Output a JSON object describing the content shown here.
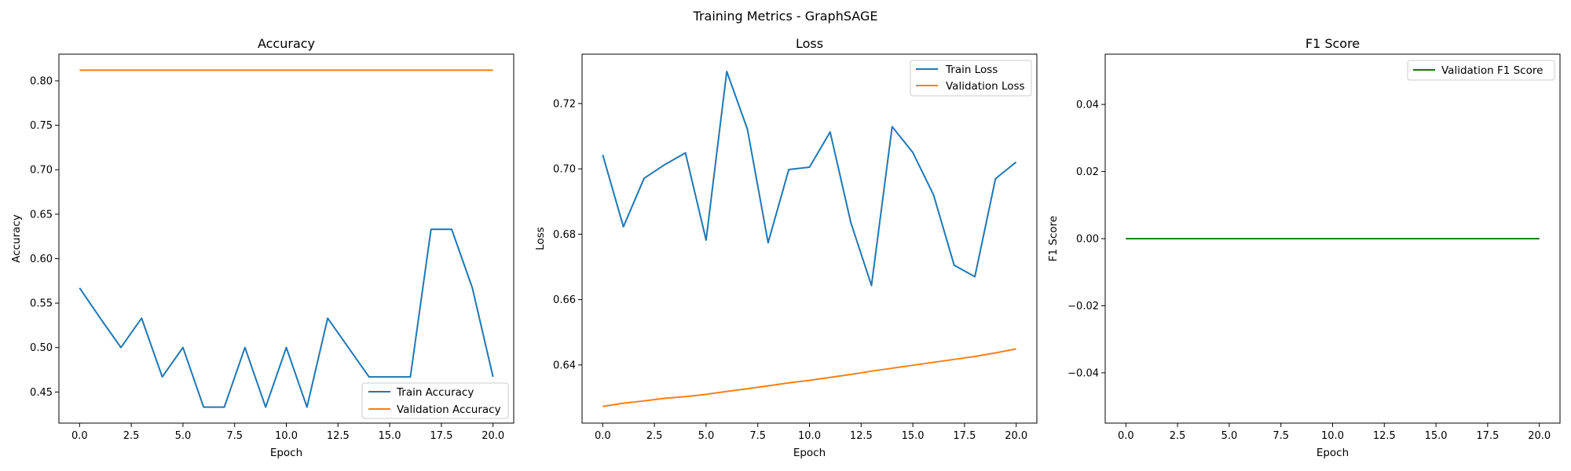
{
  "figure": {
    "suptitle": "Training Metrics - GraphSAGE"
  },
  "colors": {
    "train": "#1f77b4",
    "validation": "#ff7f0e",
    "f1": "#008000"
  },
  "chart_data": [
    {
      "type": "line",
      "title": "Accuracy",
      "xlabel": "Epoch",
      "ylabel": "Accuracy",
      "xlim": [
        -1,
        21
      ],
      "ylim": [
        0.415,
        0.83
      ],
      "x_ticks": [
        0.0,
        2.5,
        5.0,
        7.5,
        10.0,
        12.5,
        15.0,
        17.5,
        20.0
      ],
      "x_tick_labels": [
        "0.0",
        "2.5",
        "5.0",
        "7.5",
        "10.0",
        "12.5",
        "15.0",
        "17.5",
        "20.0"
      ],
      "y_ticks": [
        0.45,
        0.5,
        0.55,
        0.6,
        0.65,
        0.7,
        0.75,
        0.8
      ],
      "y_tick_labels": [
        "0.45",
        "0.50",
        "0.55",
        "0.60",
        "0.65",
        "0.70",
        "0.75",
        "0.80"
      ],
      "grid": false,
      "legend_position": "lower-right",
      "x": [
        0,
        1,
        2,
        3,
        4,
        5,
        6,
        7,
        8,
        9,
        10,
        11,
        12,
        13,
        14,
        15,
        16,
        17,
        18,
        19,
        20
      ],
      "series": [
        {
          "name": "Train Accuracy",
          "color": "#1f77b4",
          "values": [
            0.567,
            0.533,
            0.5,
            0.533,
            0.467,
            0.5,
            0.433,
            0.433,
            0.5,
            0.433,
            0.5,
            0.433,
            0.533,
            0.5,
            0.467,
            0.467,
            0.467,
            0.633,
            0.633,
            0.567,
            0.467
          ]
        },
        {
          "name": "Validation Accuracy",
          "color": "#ff7f0e",
          "values": [
            0.812,
            0.812,
            0.812,
            0.812,
            0.812,
            0.812,
            0.812,
            0.812,
            0.812,
            0.812,
            0.812,
            0.812,
            0.812,
            0.812,
            0.812,
            0.812,
            0.812,
            0.812,
            0.812,
            0.812,
            0.812
          ]
        }
      ]
    },
    {
      "type": "line",
      "title": "Loss",
      "xlabel": "Epoch",
      "ylabel": "Loss",
      "xlim": [
        -1,
        21
      ],
      "ylim": [
        0.6222,
        0.7351
      ],
      "x_ticks": [
        0.0,
        2.5,
        5.0,
        7.5,
        10.0,
        12.5,
        15.0,
        17.5,
        20.0
      ],
      "x_tick_labels": [
        "0.0",
        "2.5",
        "5.0",
        "7.5",
        "10.0",
        "12.5",
        "15.0",
        "17.5",
        "20.0"
      ],
      "y_ticks": [
        0.64,
        0.66,
        0.68,
        0.7,
        0.72
      ],
      "y_tick_labels": [
        "0.64",
        "0.66",
        "0.68",
        "0.70",
        "0.72"
      ],
      "grid": false,
      "legend_position": "upper-right",
      "x": [
        0,
        1,
        2,
        3,
        4,
        5,
        6,
        7,
        8,
        9,
        10,
        11,
        12,
        13,
        14,
        15,
        16,
        17,
        18,
        19,
        20
      ],
      "series": [
        {
          "name": "Train Loss",
          "color": "#1f77b4",
          "values": [
            0.7043,
            0.6823,
            0.6971,
            0.7013,
            0.7049,
            0.6782,
            0.7298,
            0.7121,
            0.6774,
            0.6998,
            0.7005,
            0.7113,
            0.6836,
            0.6643,
            0.7129,
            0.705,
            0.6921,
            0.6705,
            0.667,
            0.697,
            0.7021
          ]
        },
        {
          "name": "Validation Loss",
          "color": "#ff7f0e",
          "values": [
            0.6273,
            0.6283,
            0.629,
            0.6298,
            0.6303,
            0.631,
            0.6319,
            0.6327,
            0.6336,
            0.6345,
            0.6353,
            0.6362,
            0.6371,
            0.6381,
            0.639,
            0.6399,
            0.6408,
            0.6417,
            0.6426,
            0.6437,
            0.6449
          ]
        }
      ]
    },
    {
      "type": "line",
      "title": "F1 Score",
      "xlabel": "Epoch",
      "ylabel": "F1 Score",
      "xlim": [
        -1,
        21
      ],
      "ylim": [
        -0.055,
        0.055
      ],
      "x_ticks": [
        0.0,
        2.5,
        5.0,
        7.5,
        10.0,
        12.5,
        15.0,
        17.5,
        20.0
      ],
      "x_tick_labels": [
        "0.0",
        "2.5",
        "5.0",
        "7.5",
        "10.0",
        "12.5",
        "15.0",
        "17.5",
        "20.0"
      ],
      "y_ticks": [
        -0.04,
        -0.02,
        0.0,
        0.02,
        0.04
      ],
      "y_tick_labels": [
        "−0.04",
        "−0.02",
        "0.00",
        "0.02",
        "0.04"
      ],
      "grid": false,
      "legend_position": "upper-right",
      "x": [
        0,
        1,
        2,
        3,
        4,
        5,
        6,
        7,
        8,
        9,
        10,
        11,
        12,
        13,
        14,
        15,
        16,
        17,
        18,
        19,
        20
      ],
      "series": [
        {
          "name": "Validation F1 Score",
          "color": "#008000",
          "values": [
            0,
            0,
            0,
            0,
            0,
            0,
            0,
            0,
            0,
            0,
            0,
            0,
            0,
            0,
            0,
            0,
            0,
            0,
            0,
            0,
            0
          ]
        }
      ]
    }
  ]
}
